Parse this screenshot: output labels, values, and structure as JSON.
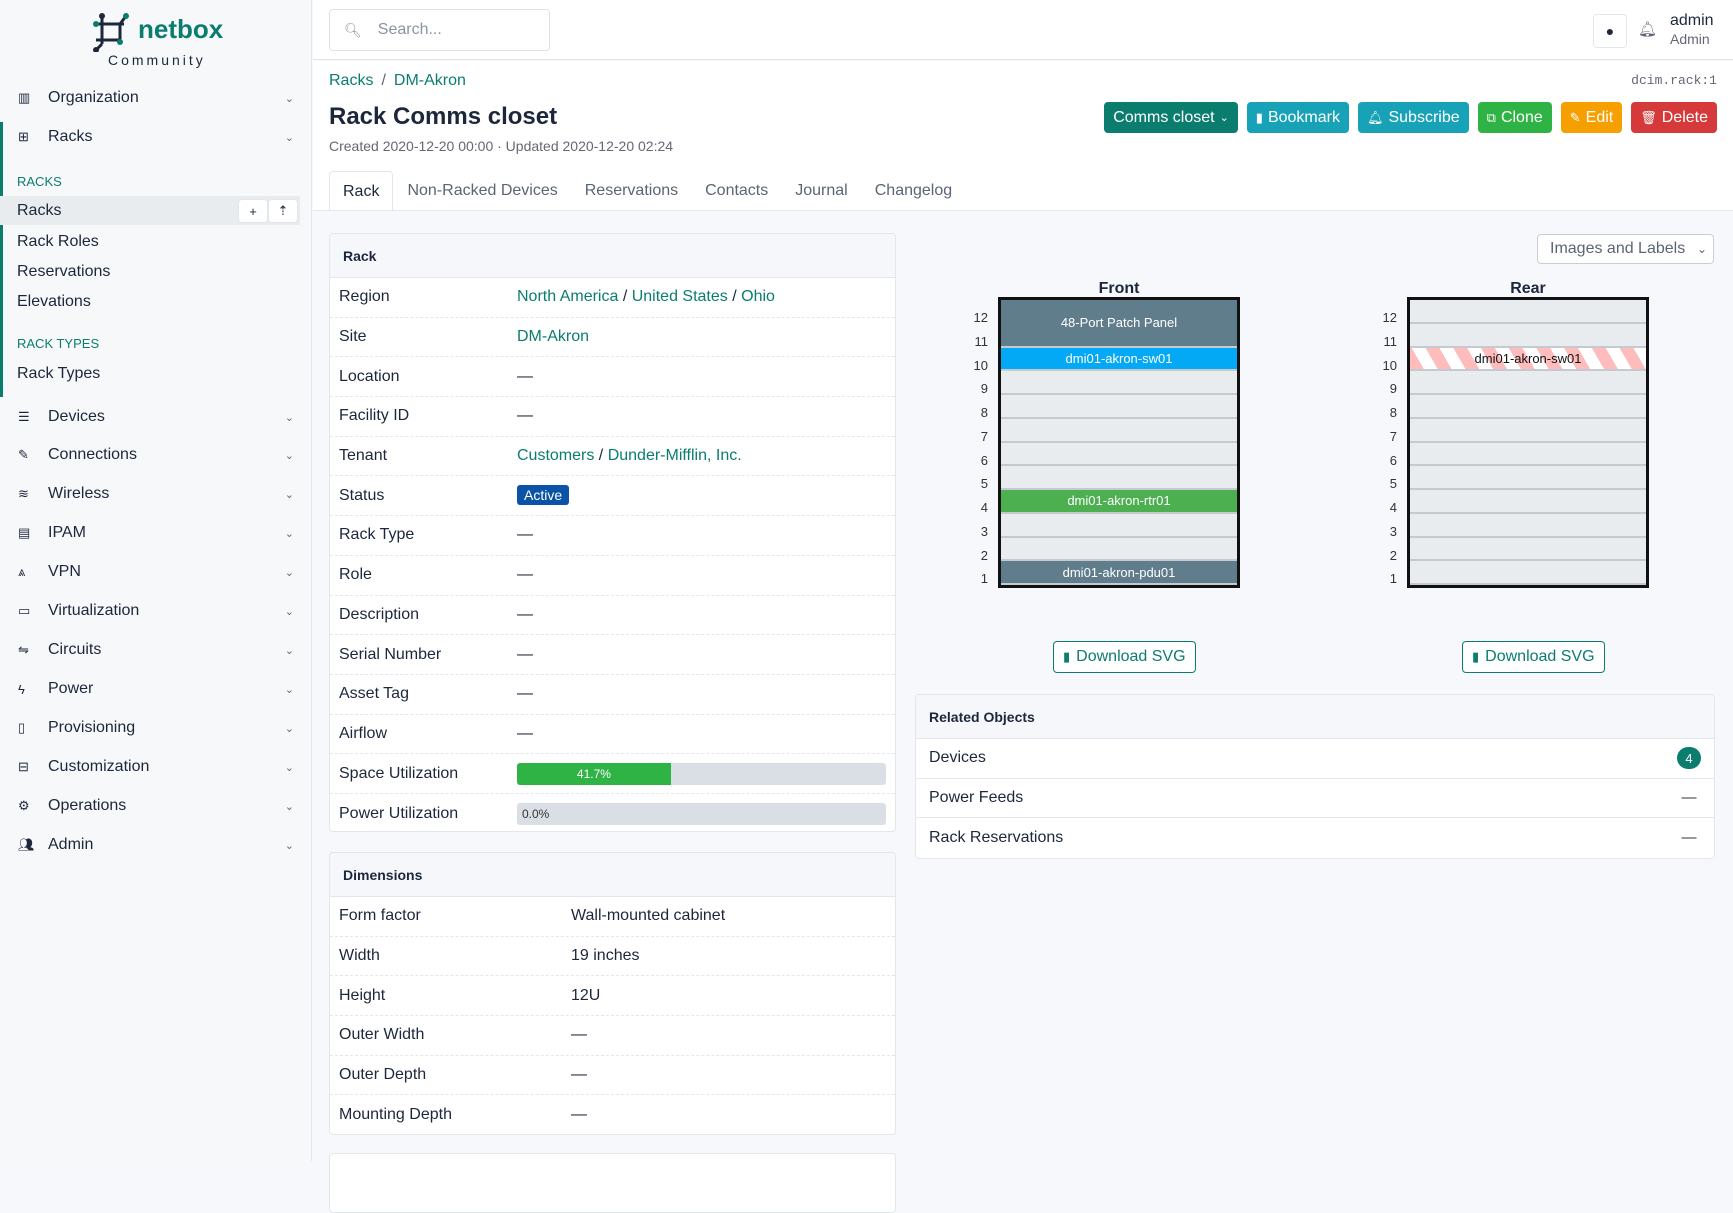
{
  "brand": {
    "name": "netbox",
    "edition": "Community"
  },
  "colors": {
    "accent": "#0b7d6f",
    "status_active": "#0b53a6",
    "space_bar": "#2fb344"
  },
  "sidebar": {
    "top_groups": [
      {
        "label": "Organization",
        "icon": "building-icon"
      },
      {
        "label": "Racks",
        "icon": "rack-icon"
      }
    ],
    "sections": [
      {
        "heading": "RACKS",
        "items": [
          "Racks",
          "Rack Roles",
          "Reservations",
          "Elevations"
        ],
        "active": "Racks"
      },
      {
        "heading": "RACK TYPES",
        "items": [
          "Rack Types"
        ]
      }
    ],
    "groups": [
      {
        "label": "Devices",
        "icon": "server-icon"
      },
      {
        "label": "Connections",
        "icon": "plug-icon"
      },
      {
        "label": "Wireless",
        "icon": "wifi-icon"
      },
      {
        "label": "IPAM",
        "icon": "ipam-icon"
      },
      {
        "label": "VPN",
        "icon": "vpn-icon"
      },
      {
        "label": "Virtualization",
        "icon": "monitor-icon"
      },
      {
        "label": "Circuits",
        "icon": "circuits-icon"
      },
      {
        "label": "Power",
        "icon": "lightning-icon"
      },
      {
        "label": "Provisioning",
        "icon": "file-icon"
      },
      {
        "label": "Customization",
        "icon": "toolbox-icon"
      },
      {
        "label": "Operations",
        "icon": "cogs-icon"
      },
      {
        "label": "Admin",
        "icon": "users-icon"
      }
    ]
  },
  "header": {
    "search_placeholder": "Search...",
    "user": "admin",
    "role": "Admin"
  },
  "page": {
    "breadcrumb": [
      "Racks",
      "DM-Akron"
    ],
    "object_id": "dcim.rack:1",
    "title": "Rack Comms closet",
    "meta": "Created 2020-12-20 00:00 · Updated 2020-12-20 02:24",
    "buttons": [
      {
        "label": "Comms closet",
        "icon": "chevron-down-icon",
        "color": "#0b7d6f"
      },
      {
        "label": "Bookmark",
        "icon": "bookmark-icon",
        "color": "#17a2b8"
      },
      {
        "label": "Subscribe",
        "icon": "bell-plus-icon",
        "color": "#17a2b8"
      },
      {
        "label": "Clone",
        "icon": "copy-icon",
        "color": "#2fb344"
      },
      {
        "label": "Edit",
        "icon": "pencil-icon",
        "color": "#f59f00"
      },
      {
        "label": "Delete",
        "icon": "trash-icon",
        "color": "#d63939"
      }
    ],
    "tabs": [
      "Rack",
      "Non-Racked Devices",
      "Reservations",
      "Contacts",
      "Journal",
      "Changelog"
    ],
    "active_tab": "Rack"
  },
  "rack_card": {
    "title": "Rack",
    "rows": [
      {
        "label": "Region",
        "links": [
          "North America",
          "United States",
          "Ohio"
        ]
      },
      {
        "label": "Site",
        "links": [
          "DM-Akron"
        ]
      },
      {
        "label": "Location",
        "value": "—"
      },
      {
        "label": "Facility ID",
        "value": "—"
      },
      {
        "label": "Tenant",
        "links": [
          "Customers",
          "Dunder-Mifflin, Inc."
        ]
      },
      {
        "label": "Status",
        "badge": "Active"
      },
      {
        "label": "Rack Type",
        "value": "—"
      },
      {
        "label": "Role",
        "value": "—"
      },
      {
        "label": "Description",
        "value": "—"
      },
      {
        "label": "Serial Number",
        "value": "—"
      },
      {
        "label": "Asset Tag",
        "value": "—"
      },
      {
        "label": "Airflow",
        "value": "—"
      },
      {
        "label": "Space Utilization",
        "percent": 41.7,
        "text": "41.7%"
      },
      {
        "label": "Power Utilization",
        "percent": 0.0,
        "text": "0.0%"
      }
    ]
  },
  "dimensions_card": {
    "title": "Dimensions",
    "rows": [
      {
        "label": "Form factor",
        "value": "Wall-mounted cabinet"
      },
      {
        "label": "Width",
        "value": "19 inches"
      },
      {
        "label": "Height",
        "value": "12U"
      },
      {
        "label": "Outer Width",
        "value": "—"
      },
      {
        "label": "Outer Depth",
        "value": "—"
      },
      {
        "label": "Mounting Depth",
        "value": "—"
      }
    ]
  },
  "elevation": {
    "view_select": "Images and Labels",
    "units": 12,
    "download_label": "Download SVG",
    "front": {
      "title": "Front",
      "devices": [
        {
          "name": "48-Port Patch Panel",
          "top_u": 12,
          "height_u": 2,
          "color": "#607d8b"
        },
        {
          "name": "dmi01-akron-sw01",
          "top_u": 10,
          "height_u": 1,
          "color": "#03a9f4"
        },
        {
          "name": "dmi01-akron-rtr01",
          "top_u": 4,
          "height_u": 1,
          "color": "#4caf50"
        },
        {
          "name": "dmi01-akron-pdu01",
          "top_u": 1,
          "height_u": 1,
          "color": "#607d8b"
        }
      ]
    },
    "rear": {
      "title": "Rear",
      "devices": [
        {
          "name": "dmi01-akron-sw01",
          "top_u": 10,
          "height_u": 1,
          "color": "occupied-stripes"
        }
      ]
    }
  },
  "related": {
    "title": "Related Objects",
    "rows": [
      {
        "label": "Devices",
        "count": "4"
      },
      {
        "label": "Power Feeds",
        "count": "—"
      },
      {
        "label": "Rack Reservations",
        "count": "—"
      }
    ]
  }
}
